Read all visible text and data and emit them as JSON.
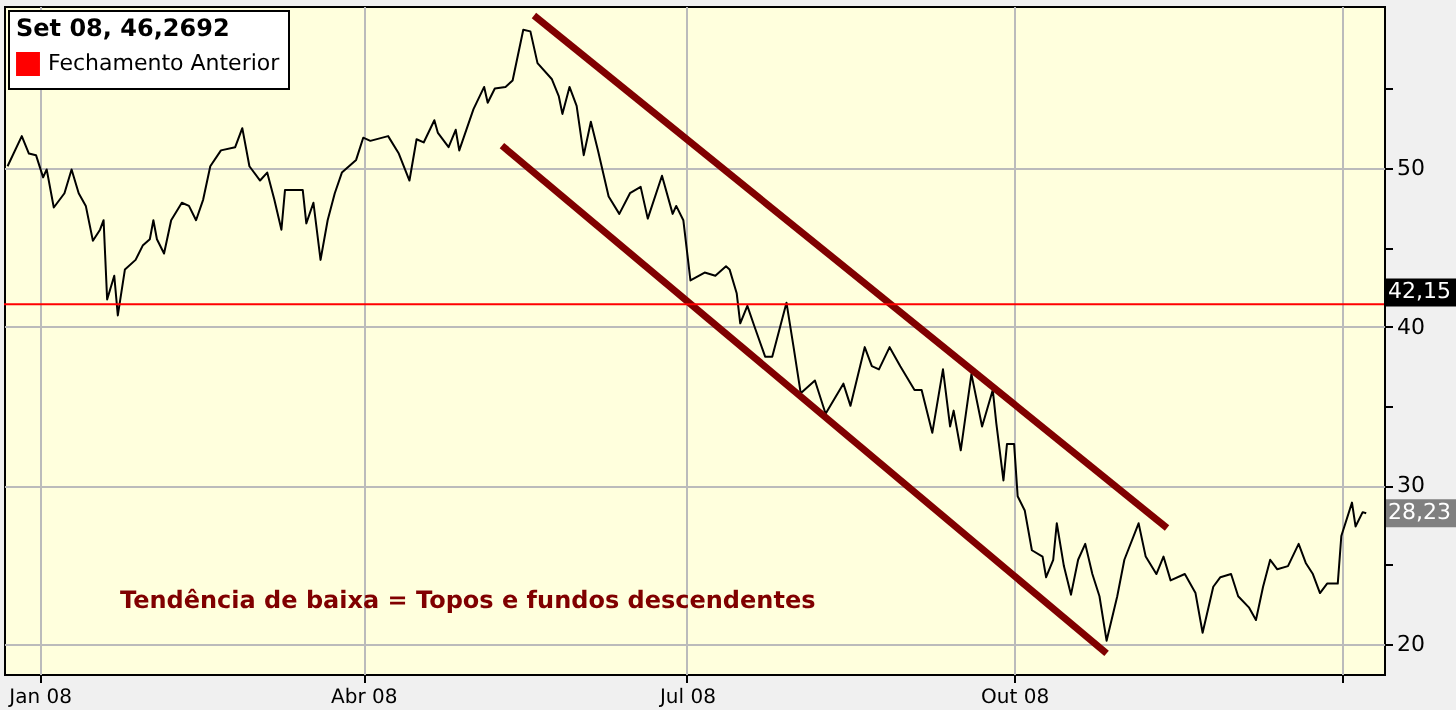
{
  "chart_data": {
    "type": "line",
    "legend_title": "Set 08, 46,2692",
    "legend": "top left",
    "grid": true,
    "xlim": [
      "2007-12-22",
      "2009-01-13"
    ],
    "xticks": [
      {
        "value": "2008-01-01",
        "label": "Jan 08"
      },
      {
        "value": "2008-04-01",
        "label": "Abr 08"
      },
      {
        "value": "2008-07-01",
        "label": "Jul 08"
      },
      {
        "value": "2008-10-01",
        "label": "Out 08"
      },
      {
        "value": "2009-01-01",
        "label": null
      }
    ],
    "ylim": [
      18.1,
      60.2
    ],
    "yticks": [
      20,
      {
        "value": 25,
        "label": null
      },
      30,
      {
        "value": 35,
        "label": null
      },
      40,
      {
        "value": 45,
        "label": null
      },
      50,
      {
        "value": 55,
        "label": null
      }
    ],
    "ref_lines": [
      {
        "axis": "y",
        "value": 41.4,
        "label": "Fechamento Anterior",
        "color": "#ff0000"
      }
    ],
    "annotations": [
      "Tendência de baixa = Topos e fundos descendentes",
      {
        "text": "42,15",
        "y": 42.15
      },
      {
        "text": "28,23",
        "y": 28.23
      }
    ],
    "series": [
      {
        "color": "#000000",
        "x": [
          "2007-12-23",
          "2007-12-27",
          "2007-12-29",
          "2007-12-31",
          "2008-01-02",
          "2008-01-03",
          "2008-01-05",
          "2008-01-08",
          "2008-01-10",
          "2008-01-12",
          "2008-01-14",
          "2008-01-16",
          "2008-01-18",
          "2008-01-19",
          "2008-01-20",
          "2008-01-22",
          "2008-01-23",
          "2008-01-25",
          "2008-01-28",
          "2008-01-30",
          "2008-02-01",
          "2008-02-02",
          "2008-02-03",
          "2008-02-05",
          "2008-02-07",
          "2008-02-10",
          "2008-02-12",
          "2008-02-14",
          "2008-02-16",
          "2008-02-18",
          "2008-02-21",
          "2008-02-25",
          "2008-02-27",
          "2008-02-29",
          "2008-03-03",
          "2008-03-05",
          "2008-03-07",
          "2008-03-09",
          "2008-03-10",
          "2008-03-15",
          "2008-03-16",
          "2008-03-18",
          "2008-03-20",
          "2008-03-22",
          "2008-03-24",
          "2008-03-26",
          "2008-03-30",
          "2008-04-01",
          "2008-04-03",
          "2008-04-08",
          "2008-04-11",
          "2008-04-14",
          "2008-04-16",
          "2008-04-18",
          "2008-04-21",
          "2008-04-22",
          "2008-04-25",
          "2008-04-27",
          "2008-04-28",
          "2008-05-02",
          "2008-05-05",
          "2008-05-06",
          "2008-05-08",
          "2008-05-11",
          "2008-05-13",
          "2008-05-16",
          "2008-05-18",
          "2008-05-20",
          "2008-05-24",
          "2008-05-26",
          "2008-05-27",
          "2008-05-29",
          "2008-05-31",
          "2008-06-02",
          "2008-06-04",
          "2008-06-06",
          "2008-06-09",
          "2008-06-12",
          "2008-06-15",
          "2008-06-18",
          "2008-06-20",
          "2008-06-24",
          "2008-06-27",
          "2008-06-28",
          "2008-06-30",
          "2008-07-02",
          "2008-07-06",
          "2008-07-09",
          "2008-07-12",
          "2008-07-13",
          "2008-07-15",
          "2008-07-16",
          "2008-07-18",
          "2008-07-20",
          "2008-07-23",
          "2008-07-25",
          "2008-07-29",
          "2008-07-31",
          "2008-08-02",
          "2008-08-06",
          "2008-08-09",
          "2008-08-14",
          "2008-08-16",
          "2008-08-20",
          "2008-08-22",
          "2008-08-24",
          "2008-08-27",
          "2008-08-30",
          "2008-09-03",
          "2008-09-05",
          "2008-09-08",
          "2008-09-11",
          "2008-09-13",
          "2008-09-14",
          "2008-09-16",
          "2008-09-19",
          "2008-09-22",
          "2008-09-25",
          "2008-09-26",
          "2008-09-28",
          "2008-09-29",
          "2008-10-01",
          "2008-10-02",
          "2008-10-04",
          "2008-10-06",
          "2008-10-09",
          "2008-10-10",
          "2008-10-12",
          "2008-10-13",
          "2008-10-15",
          "2008-10-17",
          "2008-10-19",
          "2008-10-21",
          "2008-10-23",
          "2008-10-25",
          "2008-10-27",
          "2008-10-30",
          "2008-11-01",
          "2008-11-05",
          "2008-11-07",
          "2008-11-10",
          "2008-11-12",
          "2008-11-14",
          "2008-11-18",
          "2008-11-21",
          "2008-11-23",
          "2008-11-26",
          "2008-11-28",
          "2008-12-01",
          "2008-12-03",
          "2008-12-06",
          "2008-12-08",
          "2008-12-10",
          "2008-12-12",
          "2008-12-14",
          "2008-12-17",
          "2008-12-20",
          "2008-12-22",
          "2008-12-24",
          "2008-12-26",
          "2008-12-28",
          "2008-12-31",
          "2009-01-01",
          "2009-01-04",
          "2009-01-05",
          "2009-01-07",
          "2009-01-08"
        ],
        "values": [
          50.1,
          52.0,
          50.9,
          50.8,
          49.4,
          49.9,
          47.5,
          48.4,
          49.9,
          48.4,
          47.6,
          45.4,
          46.1,
          46.7,
          41.7,
          43.2,
          40.7,
          43.6,
          44.2,
          45.1,
          45.5,
          46.7,
          45.5,
          44.6,
          46.7,
          47.8,
          47.6,
          46.7,
          48.0,
          50.1,
          51.1,
          51.3,
          52.5,
          50.1,
          49.2,
          49.7,
          48.0,
          46.1,
          48.6,
          48.6,
          46.5,
          47.8,
          44.2,
          46.7,
          48.4,
          49.7,
          50.5,
          51.9,
          51.7,
          52.0,
          50.9,
          49.2,
          51.8,
          51.6,
          53.0,
          52.2,
          51.3,
          52.4,
          51.1,
          53.7,
          55.1,
          54.1,
          55.0,
          55.1,
          55.5,
          58.7,
          58.6,
          56.6,
          55.6,
          54.5,
          53.4,
          55.1,
          53.9,
          50.8,
          52.9,
          51.1,
          48.2,
          47.1,
          48.4,
          48.8,
          46.8,
          49.5,
          47.1,
          47.6,
          46.7,
          42.9,
          43.4,
          43.2,
          43.8,
          43.6,
          42.1,
          40.2,
          41.3,
          40.0,
          38.1,
          38.1,
          41.5,
          38.7,
          35.8,
          36.6,
          34.5,
          36.4,
          35.0,
          38.7,
          37.5,
          37.3,
          38.7,
          37.5,
          36.0,
          36.0,
          33.3,
          37.3,
          33.7,
          34.7,
          32.2,
          37.0,
          33.7,
          36.0,
          33.9,
          30.3,
          32.6,
          32.6,
          29.3,
          28.4,
          25.9,
          25.5,
          24.2,
          25.3,
          27.6,
          24.9,
          23.1,
          25.3,
          26.3,
          24.4,
          23.0,
          20.2,
          23.0,
          25.3,
          27.6,
          25.5,
          24.4,
          25.5,
          24.0,
          24.4,
          23.2,
          20.7,
          23.6,
          24.2,
          24.4,
          23.0,
          22.3,
          21.5,
          23.6,
          25.3,
          24.7,
          24.9,
          26.3,
          25.1,
          24.4,
          23.2,
          23.8,
          23.8,
          26.8,
          28.9,
          27.4,
          28.3,
          28.23
        ]
      },
      {
        "type": "line",
        "color": "#800000",
        "x": [
          "2008-05-19",
          "2008-11-13"
        ],
        "values": [
          59.6,
          27.3
        ]
      },
      {
        "type": "line",
        "color": "#800000",
        "x": [
          "2008-05-10",
          "2008-10-27"
        ],
        "values": [
          51.4,
          19.4
        ]
      }
    ]
  }
}
